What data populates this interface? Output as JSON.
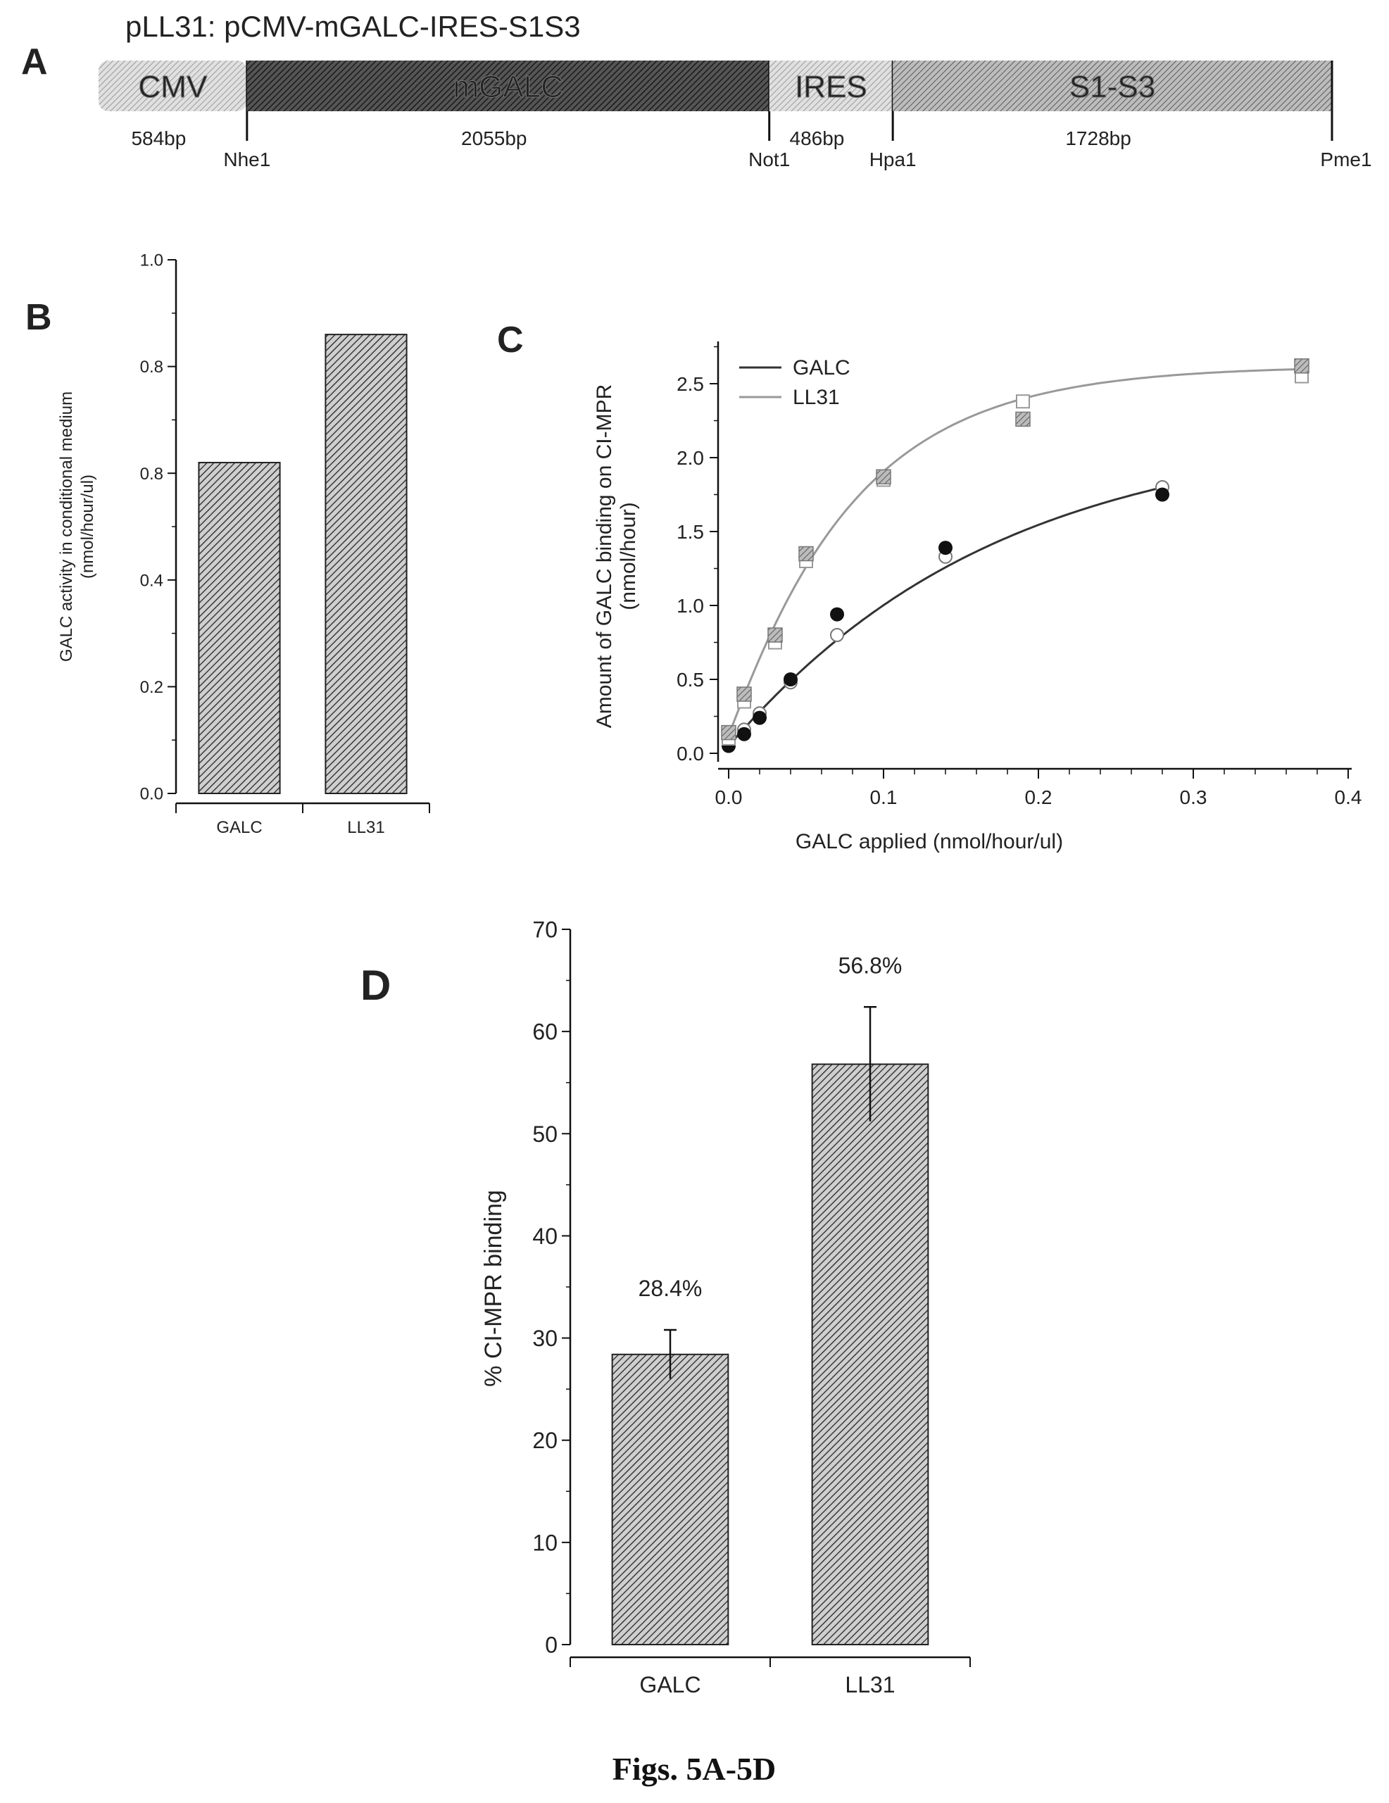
{
  "panel_a": {
    "letter": "A",
    "title": "pLL31: pCMV-mGALC-IRES-S1S3",
    "segments": [
      {
        "label": "CMV",
        "size": "584bp",
        "bp": 584,
        "color": "#bdbdbd"
      },
      {
        "label": "mGALC",
        "size": "2055bp",
        "bp": 2055,
        "color": "#4a4a4a"
      },
      {
        "label": "IRES",
        "size": "486bp",
        "bp": 486,
        "color": "#bdbdbd"
      },
      {
        "label": "S1-S3",
        "size": "1728bp",
        "bp": 1728,
        "color": "#8a8a8a"
      }
    ],
    "sites": [
      "Nhe1",
      "Not1",
      "Hpa1",
      "Pme1"
    ]
  },
  "chart_data": [
    {
      "panel": "B",
      "type": "bar",
      "categories": [
        "GALC",
        "LL31"
      ],
      "values": [
        0.62,
        0.86
      ],
      "ylabel": "GALC activity in conditional medium (nmol/hour/ul)",
      "ylim": [
        0,
        1.0
      ],
      "ytick_labels": [
        "0.0",
        "0.2",
        "0.4",
        "0.8",
        "0.8",
        "1.0"
      ]
    },
    {
      "panel": "C",
      "type": "scatter",
      "xlabel": "GALC applied (nmol/hour/ul)",
      "ylabel": "Amount of GALC binding on CI-MPR (nmol/hour)",
      "xlim": [
        0,
        0.4
      ],
      "ylim": [
        0,
        2.7
      ],
      "xtick_labels": [
        "0.0",
        "0.1",
        "0.2",
        "0.3",
        "0.4"
      ],
      "ytick_labels": [
        "0.0",
        "0.5",
        "1.0",
        "1.5",
        "2.0",
        "2.5"
      ],
      "legend_position": "top-left",
      "series": [
        {
          "name": "GALC",
          "color": "#222222",
          "x": [
            0,
            0.01,
            0.02,
            0.04,
            0.07,
            0.14,
            0.28
          ],
          "y": [
            0.05,
            0.13,
            0.24,
            0.5,
            0.94,
            1.39,
            1.75
          ],
          "x2": [
            0,
            0.01,
            0.02,
            0.04,
            0.07,
            0.14,
            0.28
          ],
          "y2": [
            0.08,
            0.16,
            0.27,
            0.48,
            0.8,
            1.33,
            1.8
          ],
          "fit_max": 2.21,
          "fit_k": 6.0
        },
        {
          "name": "LL31",
          "color": "#8a8a8a",
          "x": [
            0,
            0.01,
            0.03,
            0.05,
            0.1,
            0.19,
            0.37
          ],
          "y": [
            0.14,
            0.4,
            0.8,
            1.35,
            1.87,
            2.26,
            2.62
          ],
          "x2": [
            0,
            0.01,
            0.03,
            0.05,
            0.1,
            0.19,
            0.37
          ],
          "y2": [
            0.1,
            0.35,
            0.75,
            1.3,
            1.85,
            2.38,
            2.55
          ],
          "fit_max": 2.62,
          "fit_k": 13.0
        }
      ]
    },
    {
      "panel": "D",
      "type": "bar",
      "categories": [
        "GALC",
        "LL31"
      ],
      "values": [
        28.4,
        56.8
      ],
      "errors": [
        2.4,
        5.6
      ],
      "value_labels": [
        "28.4%",
        "56.8%"
      ],
      "ylabel": "% CI-MPR binding",
      "ylim": [
        0,
        70
      ],
      "ytick_labels": [
        "0",
        "10",
        "20",
        "30",
        "40",
        "50",
        "60",
        "70"
      ]
    }
  ],
  "panel_letters": {
    "b": "B",
    "c": "C",
    "d": "D"
  },
  "caption": "Figs. 5A-5D"
}
